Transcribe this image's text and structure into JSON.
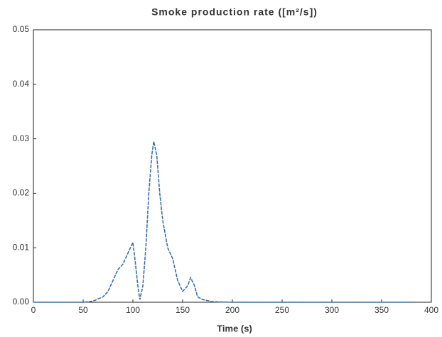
{
  "chart_data": {
    "type": "line",
    "title": "Smoke production rate ([m²/s])",
    "x_label": "Time (s)",
    "xlim": [
      0,
      400
    ],
    "xticks": [
      0,
      50,
      100,
      150,
      200,
      250,
      300,
      350,
      400
    ],
    "ylim": [
      0,
      0.05
    ],
    "yticks": [
      {
        "value": 0,
        "label": "0.00"
      },
      0.01,
      0.02,
      0.03,
      0.04,
      0.05
    ],
    "grid": false,
    "series": [
      {
        "color": "#3a6fa8",
        "x": [
          0,
          50,
          60,
          70,
          75,
          80,
          85,
          90,
          95,
          100,
          102,
          105,
          107,
          110,
          113,
          116,
          119,
          121,
          124,
          127,
          130,
          135,
          140,
          145,
          150,
          155,
          158,
          162,
          165,
          170,
          180,
          200,
          250,
          300,
          350,
          380
        ],
        "values": [
          0,
          0,
          0.0002,
          0.001,
          0.002,
          0.004,
          0.006,
          0.007,
          0.009,
          0.011,
          0.008,
          0.003,
          0.0005,
          0.003,
          0.01,
          0.02,
          0.027,
          0.0295,
          0.027,
          0.02,
          0.015,
          0.01,
          0.008,
          0.004,
          0.002,
          0.003,
          0.0045,
          0.003,
          0.001,
          0.0005,
          0.0001,
          0,
          0,
          0,
          0,
          0
        ]
      }
    ]
  }
}
